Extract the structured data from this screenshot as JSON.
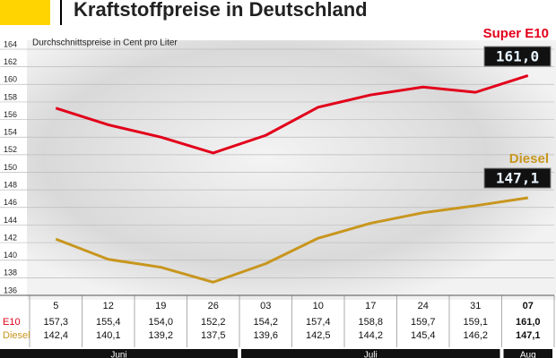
{
  "chart_data": {
    "type": "line",
    "title": "Kraftstoffpreise in Deutschland",
    "subtitle": "Durchschnittspreise in Cent pro Liter",
    "categories": [
      "5",
      "12",
      "19",
      "26",
      "03",
      "10",
      "17",
      "24",
      "31",
      "07"
    ],
    "month_groups": [
      {
        "label": "Juni",
        "count": 4
      },
      {
        "label": "Juli",
        "count": 5
      },
      {
        "label": "Aug",
        "count": 1
      }
    ],
    "series": [
      {
        "name": "Super E10",
        "row_label": "E10",
        "color": "#e2001a",
        "values": [
          157.3,
          155.4,
          154.0,
          152.2,
          154.2,
          157.4,
          158.8,
          159.7,
          159.1,
          161.0
        ],
        "value_labels": [
          "157,3",
          "155,4",
          "154,0",
          "152,2",
          "154,2",
          "157,4",
          "158,8",
          "159,7",
          "159,1",
          "161,0"
        ]
      },
      {
        "name": "Diesel",
        "row_label": "Diesel",
        "color": "#c8961e",
        "values": [
          142.4,
          140.1,
          139.2,
          137.5,
          139.6,
          142.5,
          144.2,
          145.4,
          146.2,
          147.1
        ],
        "value_labels": [
          "142,4",
          "140,1",
          "139,2",
          "137,5",
          "139,6",
          "142,5",
          "144,2",
          "145,4",
          "146,2",
          "147,1"
        ]
      }
    ],
    "ylim": [
      136,
      164
    ],
    "yticks": [
      136,
      138,
      140,
      142,
      144,
      146,
      148,
      150,
      152,
      154,
      156,
      158,
      160,
      162,
      164
    ],
    "grid": true
  }
}
